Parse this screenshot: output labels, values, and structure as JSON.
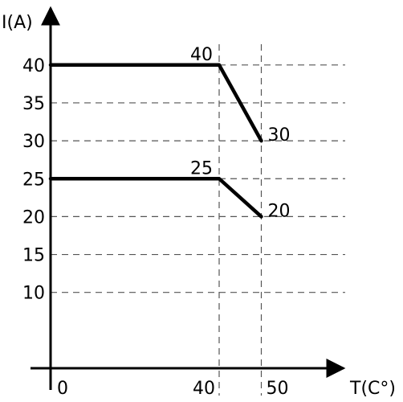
{
  "chart_data": {
    "type": "line",
    "ylabel": "I(A)",
    "xlabel": "T(C°)",
    "x_ticks": [
      {
        "value": 0,
        "label": "0"
      },
      {
        "value": 40,
        "label": "40"
      },
      {
        "value": 50,
        "label": "50"
      }
    ],
    "y_ticks": [
      {
        "value": 10,
        "label": "10"
      },
      {
        "value": 15,
        "label": "15"
      },
      {
        "value": 20,
        "label": "20"
      },
      {
        "value": 25,
        "label": "25"
      },
      {
        "value": 30,
        "label": "30"
      },
      {
        "value": 35,
        "label": "35"
      },
      {
        "value": 40,
        "label": "40"
      }
    ],
    "series": [
      {
        "x": [
          0,
          40,
          50
        ],
        "y": [
          40,
          40,
          30
        ],
        "point_labels": [
          {
            "x": 40,
            "y": 40,
            "text": "40",
            "anchor": "above"
          },
          {
            "x": 50,
            "y": 30,
            "text": "30",
            "anchor": "right"
          }
        ]
      },
      {
        "x": [
          0,
          40,
          50
        ],
        "y": [
          25,
          25,
          20
        ],
        "point_labels": [
          {
            "x": 40,
            "y": 25,
            "text": "25",
            "anchor": "above"
          },
          {
            "x": 50,
            "y": 20,
            "text": "20",
            "anchor": "right"
          }
        ]
      }
    ],
    "gridlines": {
      "horizontal": true,
      "vertical_at_x": [
        40,
        50
      ],
      "style": "dashed"
    },
    "line_color": "#000000",
    "grid_color": "#555555"
  }
}
